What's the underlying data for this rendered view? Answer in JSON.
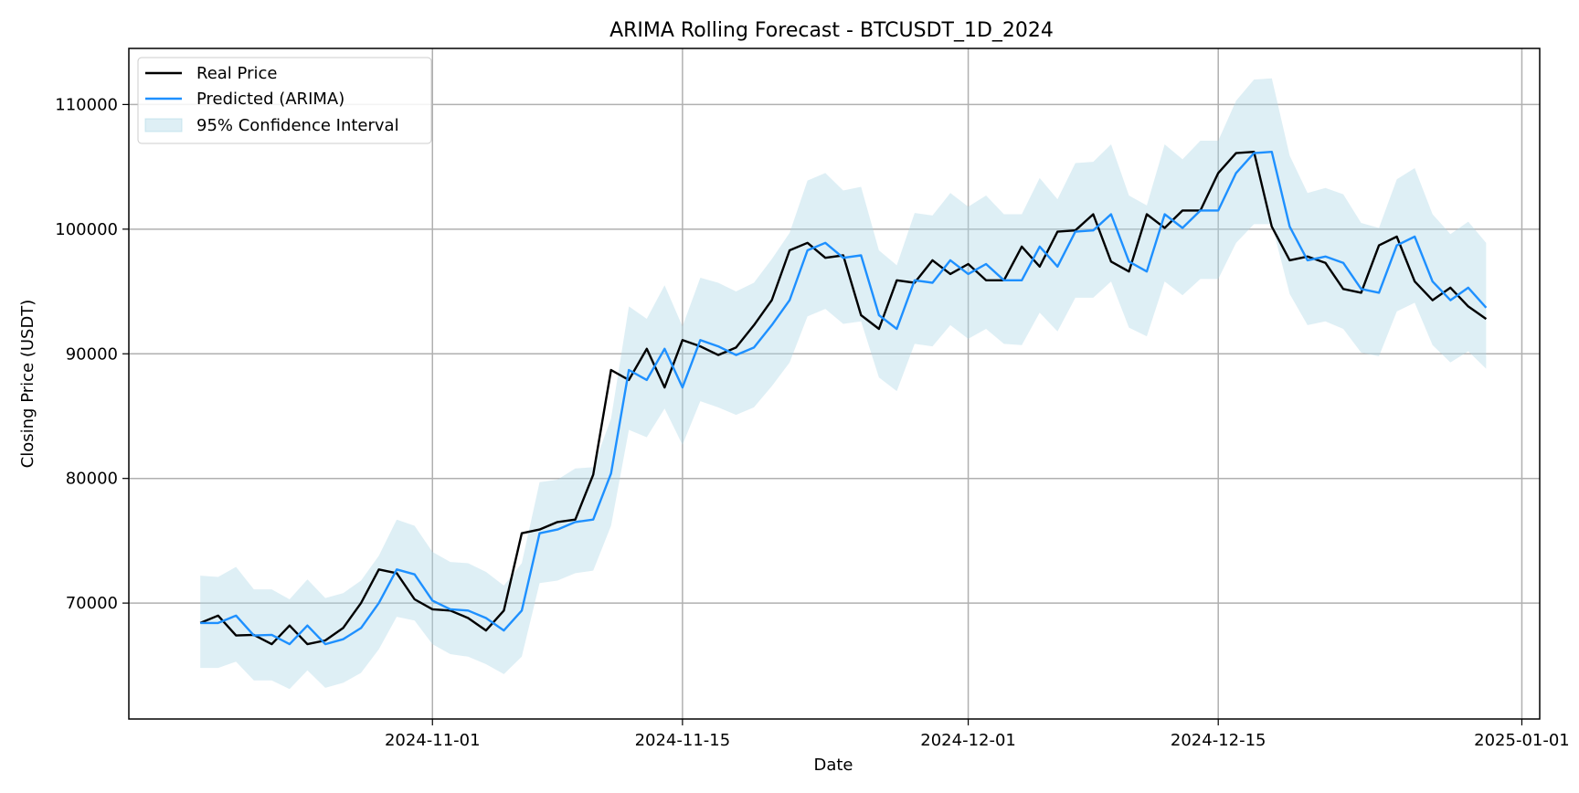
{
  "chart_data": {
    "type": "line",
    "title": "ARIMA Rolling Forecast - BTCUSDT_1D_2024",
    "xlabel": "Date",
    "ylabel": "Closing Price (USDT)",
    "xlim": [
      "2024-10-15",
      "2025-01-02"
    ],
    "ylim": [
      60700,
      114500
    ],
    "x_ticks": [
      "2024-11-01",
      "2024-11-15",
      "2024-12-01",
      "2024-12-15",
      "2025-01-01"
    ],
    "y_ticks": [
      70000,
      80000,
      90000,
      100000,
      110000
    ],
    "y_tick_labels": [
      "70000",
      "80000",
      "90000",
      "100000",
      "110000"
    ],
    "grid": true,
    "legend_placement": "upper-left",
    "x": [
      "2024-10-19",
      "2024-10-20",
      "2024-10-21",
      "2024-10-22",
      "2024-10-23",
      "2024-10-24",
      "2024-10-25",
      "2024-10-26",
      "2024-10-27",
      "2024-10-28",
      "2024-10-29",
      "2024-10-30",
      "2024-10-31",
      "2024-11-01",
      "2024-11-02",
      "2024-11-03",
      "2024-11-04",
      "2024-11-05",
      "2024-11-06",
      "2024-11-07",
      "2024-11-08",
      "2024-11-09",
      "2024-11-10",
      "2024-11-11",
      "2024-11-12",
      "2024-11-13",
      "2024-11-14",
      "2024-11-15",
      "2024-11-16",
      "2024-11-17",
      "2024-11-18",
      "2024-11-19",
      "2024-11-20",
      "2024-11-21",
      "2024-11-22",
      "2024-11-23",
      "2024-11-24",
      "2024-11-25",
      "2024-11-26",
      "2024-11-27",
      "2024-11-28",
      "2024-11-29",
      "2024-11-30",
      "2024-12-01",
      "2024-12-02",
      "2024-12-03",
      "2024-12-04",
      "2024-12-05",
      "2024-12-06",
      "2024-12-07",
      "2024-12-08",
      "2024-12-09",
      "2024-12-10",
      "2024-12-11",
      "2024-12-12",
      "2024-12-13",
      "2024-12-14",
      "2024-12-15",
      "2024-12-16",
      "2024-12-17",
      "2024-12-18",
      "2024-12-19",
      "2024-12-20",
      "2024-12-21",
      "2024-12-22",
      "2024-12-23",
      "2024-12-24",
      "2024-12-25",
      "2024-12-26",
      "2024-12-27",
      "2024-12-28",
      "2024-12-29",
      "2024-12-30"
    ],
    "series": [
      {
        "name": "Real Price",
        "color": "#000000",
        "values": [
          68400,
          69000,
          67400,
          67450,
          66700,
          68200,
          66700,
          67000,
          68000,
          70000,
          72700,
          72400,
          70300,
          69500,
          69400,
          68800,
          67800,
          69400,
          75600,
          75900,
          76500,
          76700,
          80300,
          88700,
          87900,
          90400,
          87300,
          91100,
          90600,
          89900,
          90500,
          92300,
          94300,
          98300,
          98900,
          97700,
          97900,
          93100,
          92000,
          95900,
          95700,
          97500,
          96400,
          97200,
          95900,
          95900,
          98600,
          97000,
          99800,
          99900,
          101200,
          97400,
          96600,
          101200,
          100100,
          101500,
          101500,
          104500,
          106100,
          106200,
          100200,
          97500,
          97800,
          97300,
          95200,
          94900,
          98700,
          99400,
          95800,
          94300,
          95300,
          93800,
          92800
        ]
      },
      {
        "name": "Predicted (ARIMA)",
        "color": "#1e90ff",
        "values": [
          68400,
          68400,
          69000,
          67400,
          67450,
          66700,
          68200,
          66700,
          67100,
          68000,
          70000,
          72700,
          72300,
          70200,
          69500,
          69400,
          68800,
          67800,
          69400,
          75600,
          75900,
          76500,
          76700,
          80400,
          88700,
          87900,
          90400,
          87300,
          91100,
          90600,
          89900,
          90500,
          92300,
          94300,
          98300,
          98900,
          97700,
          97900,
          93100,
          92000,
          95900,
          95700,
          97500,
          96400,
          97200,
          95900,
          95900,
          98600,
          97000,
          99800,
          99900,
          101200,
          97400,
          96600,
          101200,
          100100,
          101500,
          101500,
          104500,
          106100,
          106200,
          100200,
          97500,
          97800,
          97300,
          95200,
          94900,
          98700,
          99400,
          95800,
          94300,
          95300,
          93700
        ]
      },
      {
        "name": "95% Confidence Interval",
        "color": "#add8e6",
        "lower": [
          64800,
          64800,
          65300,
          63800,
          63800,
          63100,
          64600,
          63200,
          63600,
          64400,
          66300,
          68900,
          68600,
          66700,
          65900,
          65700,
          65100,
          64300,
          65700,
          71600,
          71800,
          72400,
          72600,
          76200,
          83900,
          83300,
          85600,
          82700,
          86200,
          85700,
          85100,
          85700,
          87400,
          89300,
          93000,
          93600,
          92400,
          92600,
          88100,
          87000,
          90800,
          90600,
          92300,
          91200,
          92000,
          90800,
          90700,
          93300,
          91800,
          94500,
          94500,
          95800,
          92100,
          91400,
          95800,
          94700,
          96000,
          96000,
          98900,
          100400,
          100400,
          94800,
          92300,
          92600,
          92000,
          90100,
          89800,
          93400,
          94100,
          90700,
          89300,
          90200,
          88800
        ],
        "upper": [
          72200,
          72100,
          72900,
          71100,
          71100,
          70300,
          71900,
          70400,
          70800,
          71800,
          73800,
          76700,
          76200,
          74100,
          73300,
          73200,
          72500,
          71400,
          73200,
          79700,
          79900,
          80800,
          80900,
          84800,
          93800,
          92800,
          95500,
          92200,
          96100,
          95700,
          95000,
          95700,
          97600,
          99700,
          103900,
          104500,
          103100,
          103400,
          98300,
          97100,
          101300,
          101100,
          102900,
          101800,
          102700,
          101200,
          101200,
          104100,
          102400,
          105300,
          105400,
          106800,
          102700,
          101900,
          106800,
          105600,
          107100,
          107100,
          110300,
          112000,
          112100,
          105900,
          102900,
          103300,
          102800,
          100500,
          100100,
          104000,
          104900,
          101200,
          99600,
          100600,
          98900
        ]
      }
    ]
  }
}
